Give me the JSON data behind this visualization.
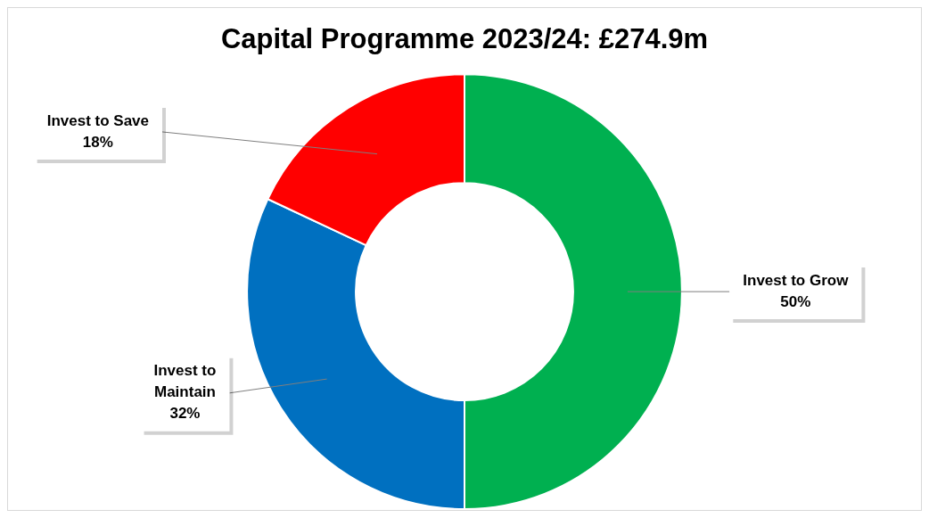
{
  "chart_data": {
    "type": "donut",
    "title": "Capital Programme 2023/24: £274.9m",
    "categories": [
      "Invest to Grow",
      "Invest to Maintain",
      "Invest to Save"
    ],
    "values": [
      50,
      32,
      18
    ],
    "colors": [
      "#00b050",
      "#0070c0",
      "#ff0000"
    ],
    "value_labels": [
      "50%",
      "32%",
      "18%"
    ],
    "legend": false
  }
}
